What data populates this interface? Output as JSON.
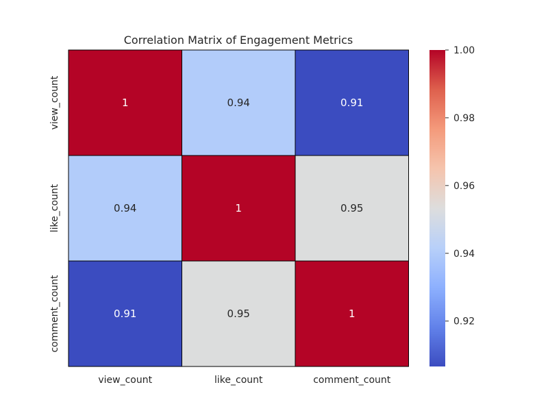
{
  "chart_data": {
    "type": "heatmap",
    "title": "Correlation Matrix of Engagement Metrics",
    "xlabel": "",
    "ylabel": "",
    "x_categories": [
      "view_count",
      "like_count",
      "comment_count"
    ],
    "y_categories": [
      "view_count",
      "like_count",
      "comment_count"
    ],
    "values": [
      [
        1.0,
        0.94,
        0.9066
      ],
      [
        0.94,
        1.0,
        0.9531
      ],
      [
        0.9066,
        0.9531,
        1.0
      ]
    ],
    "annotations": [
      [
        "1",
        "0.94",
        "0.91"
      ],
      [
        "0.94",
        "1",
        "0.95"
      ],
      [
        "0.91",
        "0.95",
        "1"
      ]
    ],
    "colormap": "coolwarm",
    "colorbar": {
      "range": [
        0.9066,
        1.0
      ],
      "ticks": [
        "0.92",
        "0.94",
        "0.96",
        "0.98",
        "1.00"
      ]
    },
    "cell_border_color": "#000000"
  }
}
